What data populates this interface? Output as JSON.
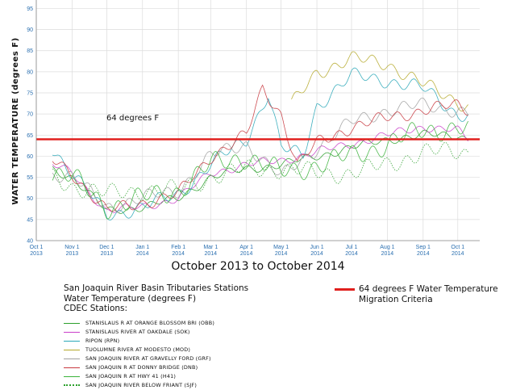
{
  "chart_data": {
    "type": "line",
    "ylabel": "WATER TEMPERATURE (degrees F)",
    "xlabel": "October 2013 to October 2014",
    "ylim": [
      40,
      97
    ],
    "yticks": [
      40,
      45,
      50,
      55,
      60,
      65,
      70,
      75,
      80,
      85,
      90,
      95
    ],
    "xticks": [
      {
        "month": "Oct 1",
        "year": "2013"
      },
      {
        "month": "Nov 1",
        "year": "2013"
      },
      {
        "month": "Dec 1",
        "year": "2013"
      },
      {
        "month": "Jan 1",
        "year": "2014"
      },
      {
        "month": "Feb 1",
        "year": "2014"
      },
      {
        "month": "Mar 1",
        "year": "2014"
      },
      {
        "month": "Apr 1",
        "year": "2014"
      },
      {
        "month": "May 1",
        "year": "2014"
      },
      {
        "month": "Jun 1",
        "year": "2014"
      },
      {
        "month": "Jul 1",
        "year": "2014"
      },
      {
        "month": "Aug 1",
        "year": "2014"
      },
      {
        "month": "Sep 1",
        "year": "2014"
      },
      {
        "month": "Oct 1",
        "year": "2014"
      }
    ],
    "x_start": "2013-10-01",
    "grid": true,
    "threshold": {
      "value": 64,
      "label": "64 degrees F",
      "color": "#e0201e"
    },
    "series": [
      {
        "name": "STANISLAUS R AT ORANGE BLOSSOM BRI (OBB)",
        "color": "#2ca02c",
        "dashed": false,
        "amp": 1.2,
        "points": [
          [
            "2013-10-15",
            57
          ],
          [
            "2013-11-01",
            55
          ],
          [
            "2013-12-01",
            47
          ],
          [
            "2014-01-01",
            48
          ],
          [
            "2014-02-01",
            50
          ],
          [
            "2014-03-01",
            55
          ],
          [
            "2014-04-01",
            57
          ],
          [
            "2014-05-01",
            58
          ],
          [
            "2014-06-01",
            60
          ],
          [
            "2014-07-01",
            62
          ],
          [
            "2014-08-01",
            64
          ],
          [
            "2014-09-01",
            65
          ],
          [
            "2014-10-01",
            65
          ],
          [
            "2014-10-10",
            64
          ]
        ]
      },
      {
        "name": "STANISLAUS RIVER AT OAKDALE (SOK)",
        "color": "#c93fc9",
        "dashed": false,
        "amp": 1.2,
        "points": [
          [
            "2013-10-15",
            58
          ],
          [
            "2013-11-01",
            56
          ],
          [
            "2013-12-01",
            47
          ],
          [
            "2014-01-01",
            48
          ],
          [
            "2014-02-01",
            50
          ],
          [
            "2014-03-01",
            56
          ],
          [
            "2014-04-01",
            58
          ],
          [
            "2014-05-01",
            59
          ],
          [
            "2014-06-01",
            61
          ],
          [
            "2014-07-01",
            63
          ],
          [
            "2014-08-01",
            65
          ],
          [
            "2014-09-01",
            67
          ],
          [
            "2014-10-01",
            66
          ],
          [
            "2014-10-10",
            64
          ]
        ]
      },
      {
        "name": "RIPON (RPN)",
        "color": "#2aa7b8",
        "dashed": false,
        "amp": 2.0,
        "points": [
          [
            "2013-10-15",
            62
          ],
          [
            "2013-11-01",
            56
          ],
          [
            "2013-12-01",
            46
          ],
          [
            "2014-01-01",
            48
          ],
          [
            "2014-02-01",
            51
          ],
          [
            "2014-03-01",
            58
          ],
          [
            "2014-04-01",
            64
          ],
          [
            "2014-04-20",
            75
          ],
          [
            "2014-05-01",
            62
          ],
          [
            "2014-05-20",
            60
          ],
          [
            "2014-06-01",
            72
          ],
          [
            "2014-07-01",
            79
          ],
          [
            "2014-08-01",
            78
          ],
          [
            "2014-09-01",
            76
          ],
          [
            "2014-10-01",
            70
          ],
          [
            "2014-10-10",
            70
          ]
        ]
      },
      {
        "name": "TUOLUMNE RIVER AT MODESTO (MOD)",
        "color": "#b5a82a",
        "dashed": false,
        "amp": 2.0,
        "points": [
          [
            "2014-05-10",
            72
          ],
          [
            "2014-06-01",
            80
          ],
          [
            "2014-07-01",
            83
          ],
          [
            "2014-08-01",
            82
          ],
          [
            "2014-09-01",
            77
          ],
          [
            "2014-10-01",
            73
          ],
          [
            "2014-10-10",
            72
          ]
        ]
      },
      {
        "name": "SAN JOAQUIN RIVER AT GRAVELLY FORD (GRF)",
        "color": "#a0a0a0",
        "dashed": false,
        "amp": 2.0,
        "points": [
          [
            "2013-10-15",
            56
          ],
          [
            "2013-11-01",
            55
          ],
          [
            "2013-12-01",
            48
          ],
          [
            "2014-01-01",
            50
          ],
          [
            "2014-02-01",
            52
          ],
          [
            "2014-03-01",
            60
          ],
          [
            "2014-04-01",
            63
          ],
          [
            "2014-05-01",
            55
          ],
          [
            "2014-06-01",
            62
          ],
          [
            "2014-07-01",
            68
          ],
          [
            "2014-08-01",
            71
          ],
          [
            "2014-09-01",
            72
          ],
          [
            "2014-10-01",
            71
          ],
          [
            "2014-10-10",
            70
          ]
        ]
      },
      {
        "name": "SAN JOAQUIN R AT DONNY BRIDGE (DNB)",
        "color": "#c8393f",
        "dashed": false,
        "amp": 1.8,
        "points": [
          [
            "2013-10-15",
            59
          ],
          [
            "2013-11-01",
            56
          ],
          [
            "2013-12-01",
            47
          ],
          [
            "2014-01-01",
            49
          ],
          [
            "2014-02-01",
            51
          ],
          [
            "2014-03-01",
            60
          ],
          [
            "2014-04-01",
            65
          ],
          [
            "2014-04-15",
            76
          ],
          [
            "2014-05-01",
            70
          ],
          [
            "2014-05-15",
            58
          ],
          [
            "2014-06-01",
            63
          ],
          [
            "2014-07-01",
            67
          ],
          [
            "2014-08-01",
            69
          ],
          [
            "2014-09-01",
            71
          ],
          [
            "2014-10-01",
            72
          ],
          [
            "2014-10-10",
            71
          ]
        ]
      },
      {
        "name": "SAN JOAQUIN R AT HWY 41 (H41)",
        "color": "#3bb33b",
        "dashed": false,
        "amp": 3.0,
        "points": [
          [
            "2013-10-15",
            56
          ],
          [
            "2013-11-01",
            55
          ],
          [
            "2013-12-01",
            48
          ],
          [
            "2014-01-01",
            50
          ],
          [
            "2014-02-01",
            52
          ],
          [
            "2014-03-01",
            58
          ],
          [
            "2014-04-01",
            60
          ],
          [
            "2014-05-01",
            56
          ],
          [
            "2014-06-01",
            58
          ],
          [
            "2014-07-01",
            60
          ],
          [
            "2014-08-01",
            63
          ],
          [
            "2014-09-01",
            66
          ],
          [
            "2014-10-01",
            67
          ],
          [
            "2014-10-10",
            66
          ]
        ]
      },
      {
        "name": "SAN JOAQUIN RIVER BELOW FRIANT (SJF)",
        "color": "#2ca02c",
        "dashed": true,
        "amp": 2.5,
        "points": [
          [
            "2013-10-15",
            55
          ],
          [
            "2013-11-01",
            53
          ],
          [
            "2013-12-01",
            51
          ],
          [
            "2014-01-01",
            52
          ],
          [
            "2014-02-01",
            52
          ],
          [
            "2014-03-01",
            55
          ],
          [
            "2014-04-01",
            57
          ],
          [
            "2014-05-01",
            57
          ],
          [
            "2014-06-01",
            56
          ],
          [
            "2014-07-01",
            56
          ],
          [
            "2014-08-01",
            58
          ],
          [
            "2014-09-01",
            61
          ],
          [
            "2014-10-01",
            61
          ],
          [
            "2014-10-10",
            61
          ]
        ]
      }
    ]
  },
  "legend": {
    "title_lines": [
      "San Joaquin River Basin Tributaries Stations",
      "Water Temperature (degrees F)",
      "CDEC Stations:"
    ]
  },
  "criteria": {
    "lines": [
      "64 degrees F Water Temperature",
      "Migration Criteria"
    ]
  }
}
